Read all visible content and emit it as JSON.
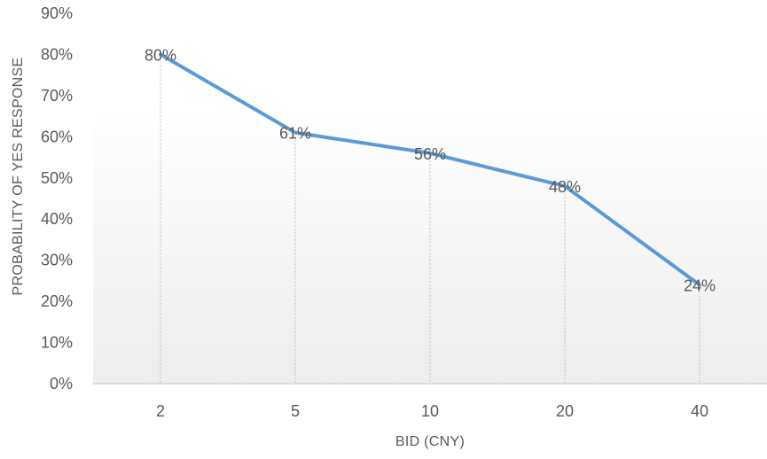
{
  "chart_data": {
    "type": "line",
    "title": "",
    "xlabel": "BID (CNY)",
    "ylabel": "PROBABILITY OF YES RESPONSE",
    "categories": [
      "2",
      "5",
      "10",
      "20",
      "40"
    ],
    "series": [
      {
        "values": [
          80,
          61,
          56,
          48,
          24
        ],
        "data_labels": [
          "80%",
          "61%",
          "56%",
          "48%",
          "24%"
        ],
        "color": "#5B9BD5"
      }
    ],
    "ylim": [
      0,
      90
    ],
    "yticks": [
      0,
      10,
      20,
      30,
      40,
      50,
      60,
      70,
      80,
      90
    ],
    "ytick_labels": [
      "0%",
      "10%",
      "20%",
      "30%",
      "40%",
      "50%",
      "60%",
      "70%",
      "80%",
      "90%"
    ],
    "grid": "vertical drop lines",
    "legend": "none"
  }
}
